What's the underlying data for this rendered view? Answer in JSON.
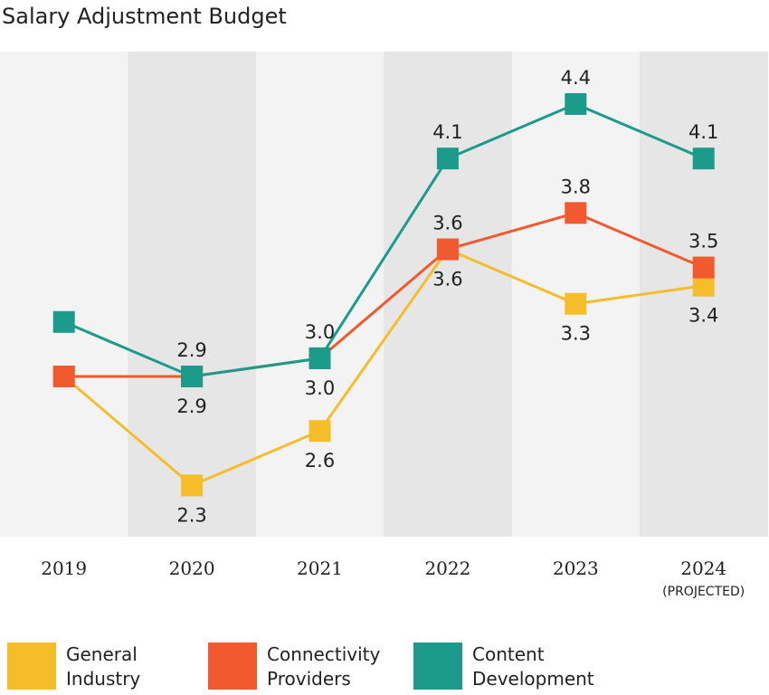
{
  "chart_data": {
    "type": "line",
    "title": "Salary Adjustment Budget",
    "categories": [
      "2019",
      "2020",
      "2021",
      "2022",
      "2023",
      "2024"
    ],
    "category_sublabels": [
      "",
      "",
      "",
      "",
      "",
      "(PROJECTED)"
    ],
    "ylim": [
      2.0,
      4.9
    ],
    "grid": false,
    "legend_position": "bottom",
    "series": [
      {
        "name": "General Industry",
        "color": "#f6bd2b",
        "values": [
          2.9,
          2.3,
          2.6,
          3.6,
          3.3,
          3.4
        ],
        "labels": [
          null,
          "2.3",
          "2.6",
          "3.6",
          "3.3",
          "3.4"
        ]
      },
      {
        "name": "Connectivity Providers",
        "color": "#f15a2f",
        "values": [
          2.9,
          2.9,
          3.0,
          3.6,
          3.8,
          3.5
        ],
        "labels": [
          null,
          "2.9",
          "3.0",
          "3.6",
          "3.8",
          "3.5"
        ]
      },
      {
        "name": "Content Development",
        "color": "#1c9a8a",
        "values": [
          3.2,
          2.9,
          3.0,
          4.1,
          4.4,
          4.1
        ],
        "labels": [
          null,
          "2.9",
          "3.0",
          "4.1",
          "4.4",
          "4.1"
        ]
      }
    ],
    "legend": [
      {
        "line1": "General",
        "line2": "Industry"
      },
      {
        "line1": "Connectivity",
        "line2": "Providers"
      },
      {
        "line1": "Content",
        "line2": "Development"
      }
    ]
  }
}
